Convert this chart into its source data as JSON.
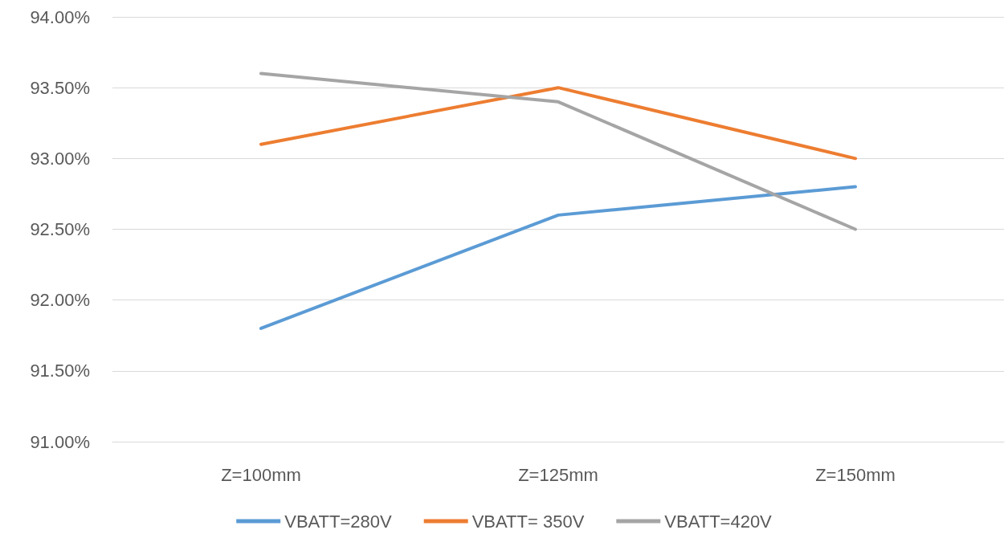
{
  "chart_data": {
    "type": "line",
    "categories": [
      "Z=100mm",
      "Z=125mm",
      "Z=150mm"
    ],
    "series": [
      {
        "name": "VBATT=280V",
        "color": "#5b9bd5",
        "values": [
          91.8,
          92.6,
          92.8
        ]
      },
      {
        "name": "VBATT= 350V",
        "color": "#ed7d31",
        "values": [
          93.1,
          93.5,
          93.0
        ]
      },
      {
        "name": "VBATT=420V",
        "color": "#a5a5a5",
        "values": [
          93.6,
          93.4,
          92.5
        ]
      }
    ],
    "ylim": [
      91,
      94
    ],
    "yticks": [
      {
        "value": 91,
        "label": "91.00%"
      },
      {
        "value": 91.5,
        "label": "91.50%"
      },
      {
        "value": 92,
        "label": "92.00%"
      },
      {
        "value": 92.5,
        "label": "92.50%"
      },
      {
        "value": 93,
        "label": "93.00%"
      },
      {
        "value": 93.5,
        "label": "93.50%"
      },
      {
        "value": 94,
        "label": "94.00%"
      }
    ],
    "grid": "y",
    "legend": "bottom",
    "marker": "none",
    "line_style": "solid"
  }
}
